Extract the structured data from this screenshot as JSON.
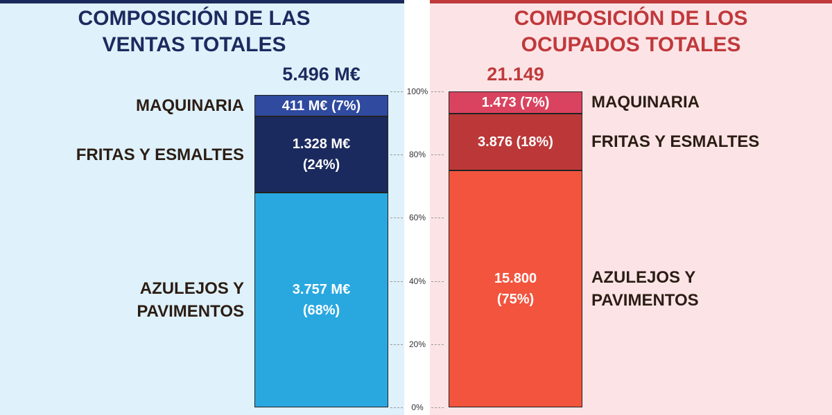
{
  "chart_data": [
    {
      "type": "stacked_bar",
      "title": "COMPOSICIÓN DE LAS VENTAS TOTALES",
      "total": "5.496 M€",
      "categories": [
        "AZULEJOS Y PAVIMENTOS",
        "FRITAS Y ESMALTES",
        "MAQUINARIA"
      ],
      "values": [
        68,
        24,
        7
      ],
      "value_labels": [
        "3.757 M€ (68%)",
        "1.328 M€ (24%)",
        "411 M€ (7%)"
      ],
      "colors": [
        "#29a8e0",
        "#1b2a5e",
        "#2f4a9e"
      ],
      "title_color": "#1b2a5e",
      "ylim": [
        0,
        100
      ],
      "yticks": [
        {
          "value": 0,
          "label": "0%"
        },
        {
          "value": 20,
          "label": "20%"
        },
        {
          "value": 40,
          "label": "40%"
        },
        {
          "value": 60,
          "label": "60%"
        },
        {
          "value": 80,
          "label": "80%"
        },
        {
          "value": 100,
          "label": "100%"
        }
      ]
    },
    {
      "type": "stacked_bar",
      "title": "COMPOSICIÓN DE LOS OCUPADOS TOTALES",
      "total": "21.149",
      "categories": [
        "AZULEJOS Y PAVIMENTOS",
        "FRITAS Y ESMALTES",
        "MAQUINARIA"
      ],
      "values": [
        75,
        18,
        7
      ],
      "value_labels": [
        "15.800 (75%)",
        "3.876 (18%)",
        "1.473 (7%)"
      ],
      "colors": [
        "#f2543d",
        "#bc3838",
        "#d9435f"
      ],
      "title_color": "#c0393b",
      "ylim": [
        0,
        100
      ]
    }
  ]
}
